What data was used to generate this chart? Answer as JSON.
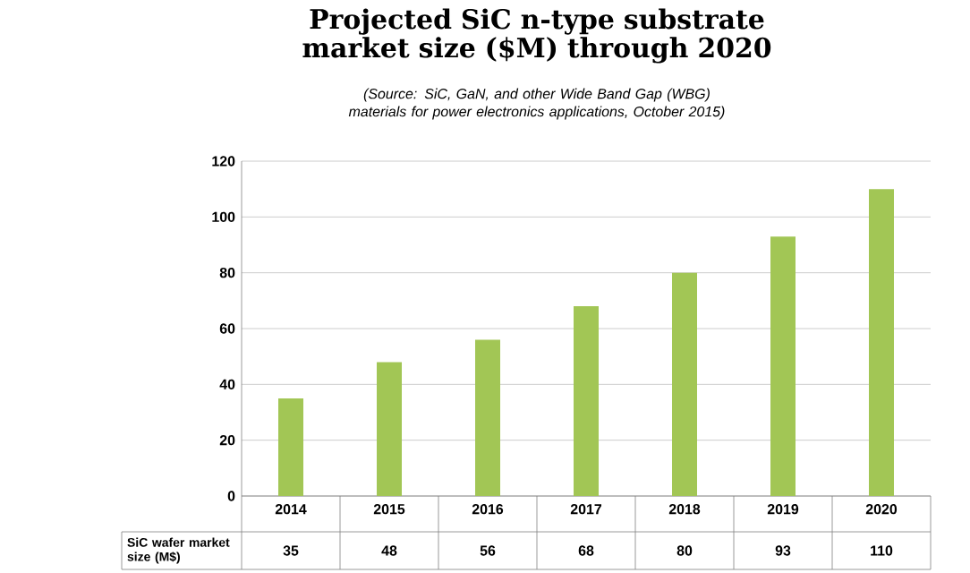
{
  "chart_data": {
    "type": "bar",
    "title": "Projected SiC n-type substrate market size ($M) through 2020",
    "subtitle": "(Source: SiC, GaN, and other Wide Band Gap (WBG) materials for power electronics applications, October 2015)",
    "categories": [
      "2014",
      "2015",
      "2016",
      "2017",
      "2018",
      "2019",
      "2020"
    ],
    "values": [
      35,
      48,
      56,
      68,
      80,
      93,
      110
    ],
    "color": "#a2c655",
    "ylim": [
      0,
      120
    ],
    "yticks": [
      0,
      20,
      40,
      60,
      80,
      100,
      120
    ],
    "grid": "y",
    "data_labels": true,
    "annotations": [
      "SiC wafer market size (M$)"
    ]
  }
}
